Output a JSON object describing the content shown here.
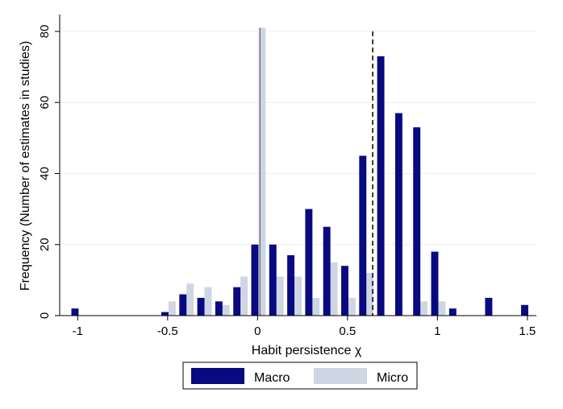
{
  "chart_data": {
    "type": "bar",
    "xlabel": "Habit persistence χ",
    "ylabel": "Frequency (Number of estimates in studies)",
    "xlim": [
      -1.1,
      1.55
    ],
    "ylim": [
      0,
      80
    ],
    "xticks": [
      -1,
      -0.5,
      0,
      0.5,
      1,
      1.5
    ],
    "xtick_labels": [
      "-1",
      "-0.5",
      "0",
      "0.5",
      "1",
      "1.5"
    ],
    "yticks": [
      0,
      20,
      40,
      60,
      80
    ],
    "ytick_labels": [
      "0",
      "20",
      "40",
      "60",
      "80"
    ],
    "grid": true,
    "legend_position": "bottom",
    "reference_line": {
      "x": 0.64,
      "style": "dashed"
    },
    "series": [
      {
        "name": "Macro",
        "color": "#0a0a80",
        "x": [
          -1.0,
          -0.5,
          -0.4,
          -0.3,
          -0.2,
          -0.1,
          0.0,
          0.1,
          0.2,
          0.3,
          0.4,
          0.5,
          0.6,
          0.7,
          0.8,
          0.9,
          1.0,
          1.1,
          1.3,
          1.5
        ],
        "values": [
          2,
          1,
          6,
          5,
          4,
          8,
          20,
          20,
          17,
          30,
          25,
          14,
          45,
          73,
          57,
          53,
          18,
          2,
          5,
          3
        ]
      },
      {
        "name": "Micro",
        "color": "#ced6e4",
        "x": [
          -0.5,
          -0.4,
          -0.3,
          -0.2,
          -0.1,
          0.0,
          0.1,
          0.2,
          0.3,
          0.4,
          0.5,
          0.6,
          0.9,
          1.0
        ],
        "values": [
          4,
          9,
          8,
          3,
          11,
          81,
          11,
          11,
          5,
          15,
          5,
          12,
          4,
          4
        ]
      }
    ]
  }
}
